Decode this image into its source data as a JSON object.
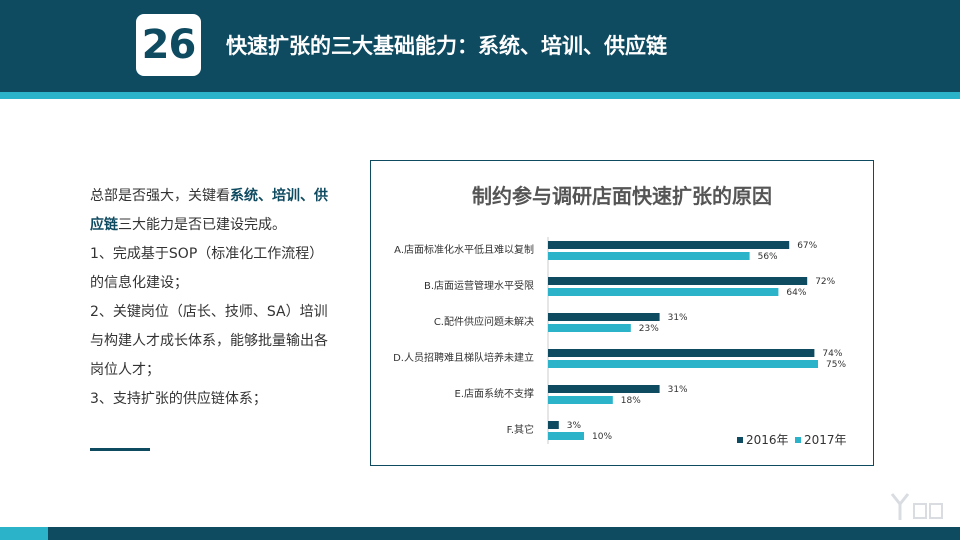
{
  "header": {
    "number": "26",
    "title": "快速扩张的三大基础能力：系统、培训、供应链"
  },
  "left_panel": {
    "p1_before": "总部是否强大，关键看",
    "p1_highlight": "系统、培训、供应链",
    "p1_after": "三大能力是否已建设完成。",
    "p2": "1、完成基于SOP（标准化工作流程）的信息化建设；",
    "p3": "2、关键岗位（店长、技师、SA）培训与构建人才成长体系，能够批量输出各岗位人才；",
    "p4": "3、支持扩张的供应链体系；"
  },
  "chart_data": {
    "type": "bar",
    "orientation": "horizontal",
    "title": "制约参与调研店面快速扩张的原因",
    "categories": [
      "A.店面标准化水平低且难以复制",
      "B.店面运营管理水平受限",
      "C.配件供应问题未解决",
      "D.人员招聘难且梯队培养未建立",
      "E.店面系统不支撑",
      "F.其它"
    ],
    "series": [
      {
        "name": "2016年",
        "values": [
          67,
          72,
          31,
          74,
          31,
          3
        ],
        "labels": [
          "67%",
          "72%",
          "31%",
          "74%",
          "31%",
          "3%"
        ],
        "color": "#0e4a60"
      },
      {
        "name": "2017年",
        "values": [
          56,
          64,
          23,
          75,
          18,
          10
        ],
        "labels": [
          "56%",
          "64%",
          "23%",
          "75%",
          "18%",
          "10%"
        ],
        "color": "#2ab3c9"
      }
    ],
    "xlim": [
      0,
      100
    ],
    "grid": false,
    "legend": "bottom-right",
    "unit": "%"
  }
}
